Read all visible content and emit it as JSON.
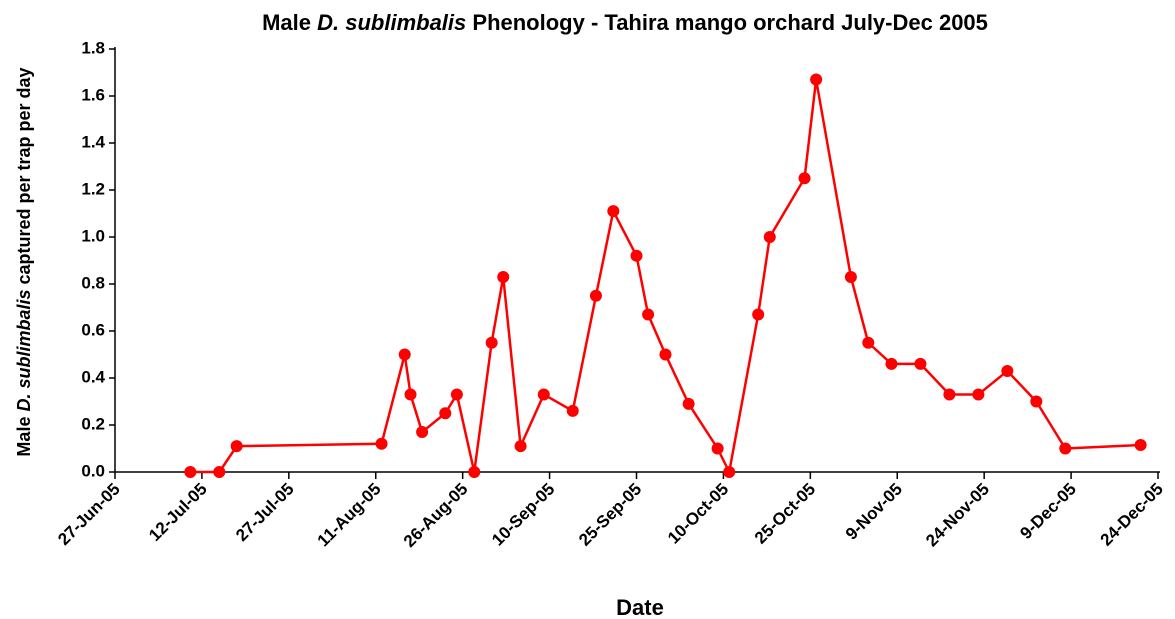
{
  "chart_data": {
    "type": "line",
    "title": [
      "Male ",
      "D. sublimbalis",
      " Phenology - Tahira mango orchard July-Dec 2005"
    ],
    "x_label": "Date",
    "y_label": [
      "Male ",
      "D. sublimbalis",
      " captured per trap per day"
    ],
    "series": [
      {
        "name": "Male D. sublimbalis",
        "color": "#ff0000",
        "x": [
          "2005-07-10",
          "2005-07-15",
          "2005-07-18",
          "2005-08-12",
          "2005-08-16",
          "2005-08-17",
          "2005-08-19",
          "2005-08-23",
          "2005-08-25",
          "2005-08-28",
          "2005-08-31",
          "2005-09-02",
          "2005-09-05",
          "2005-09-09",
          "2005-09-14",
          "2005-09-18",
          "2005-09-21",
          "2005-09-25",
          "2005-09-27",
          "2005-09-30",
          "2005-10-04",
          "2005-10-09",
          "2005-10-11",
          "2005-10-16",
          "2005-10-18",
          "2005-10-24",
          "2005-10-26",
          "2005-11-01",
          "2005-11-04",
          "2005-11-08",
          "2005-11-13",
          "2005-11-18",
          "2005-11-23",
          "2005-11-28",
          "2005-12-03",
          "2005-12-08",
          "2005-12-21"
        ],
        "values": [
          0,
          0,
          0.11,
          0.12,
          0.5,
          0.33,
          0.17,
          0.25,
          0.33,
          0,
          0.55,
          0.83,
          0.11,
          0.33,
          0.26,
          0.75,
          1.11,
          0.92,
          0.67,
          0.5,
          0.29,
          0.1,
          0,
          0.67,
          1.0,
          1.25,
          1.67,
          0.83,
          0.55,
          0.46,
          0.46,
          0.33,
          0.33,
          0.43,
          0.3,
          0.1,
          0.115
        ]
      }
    ],
    "xlim": [
      "2005-06-27",
      "2005-12-24"
    ],
    "xticks": [
      {
        "value": "2005-06-27",
        "label": "27-Jun-05"
      },
      {
        "value": "2005-07-12",
        "label": "12-Jul-05"
      },
      {
        "value": "2005-07-27",
        "label": "27-Jul-05"
      },
      {
        "value": "2005-08-11",
        "label": "11-Aug-05"
      },
      {
        "value": "2005-08-26",
        "label": "26-Aug-05"
      },
      {
        "value": "2005-09-10",
        "label": "10-Sep-05"
      },
      {
        "value": "2005-09-25",
        "label": "25-Sep-05"
      },
      {
        "value": "2005-10-10",
        "label": "10-Oct-05"
      },
      {
        "value": "2005-10-25",
        "label": "25-Oct-05"
      },
      {
        "value": "2005-11-09",
        "label": "9-Nov-05"
      },
      {
        "value": "2005-11-24",
        "label": "24-Nov-05"
      },
      {
        "value": "2005-12-09",
        "label": "9-Dec-05"
      },
      {
        "value": "2005-12-24",
        "label": "24-Dec-05"
      }
    ],
    "ylim": [
      0,
      1.8
    ],
    "yticks": [
      {
        "value": 0,
        "label": "0.0"
      },
      0.2,
      0.4,
      0.6,
      0.8,
      {
        "value": 1,
        "label": "1.0"
      },
      1.2,
      1.4,
      1.6,
      1.8
    ],
    "grid": false,
    "markers": true
  }
}
